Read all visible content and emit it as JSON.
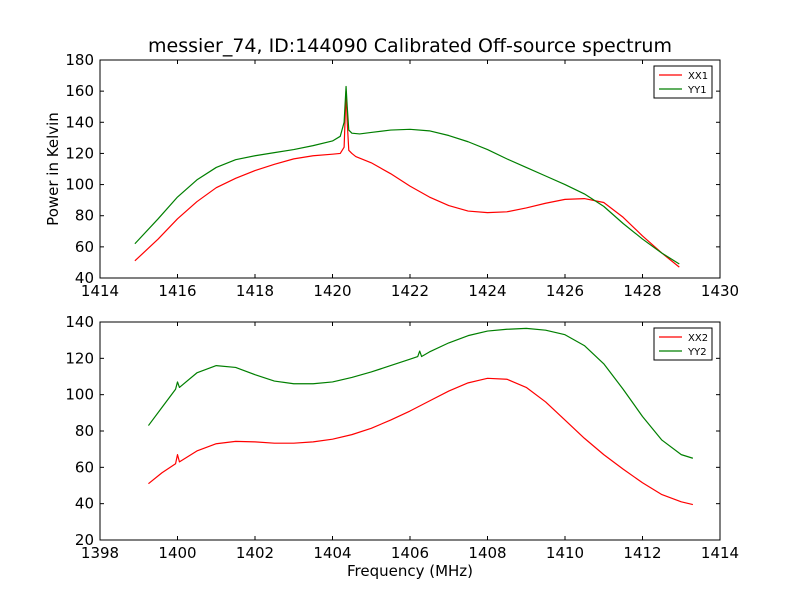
{
  "colors": {
    "red": "#ff0000",
    "green": "#007f00",
    "axes": "#000000"
  },
  "chart_data": [
    {
      "type": "line",
      "title": "messier_74, ID:144090 Calibrated Off-source spectrum",
      "xlabel": "",
      "ylabel": "Power in Kelvin",
      "xlim": [
        1414,
        1430
      ],
      "ylim": [
        40,
        180
      ],
      "xticks": [
        1414,
        1416,
        1418,
        1420,
        1422,
        1424,
        1426,
        1428,
        1430
      ],
      "yticks": [
        40,
        60,
        80,
        100,
        120,
        140,
        160,
        180
      ],
      "legend_position": "top-right",
      "series": [
        {
          "name": "XX1",
          "color": "#ff0000",
          "x": [
            1414.9,
            1415.5,
            1416.0,
            1416.5,
            1417.0,
            1417.5,
            1418.0,
            1418.5,
            1419.0,
            1419.5,
            1420.0,
            1420.2,
            1420.3,
            1420.35,
            1420.38,
            1420.42,
            1420.5,
            1420.6,
            1421.0,
            1421.5,
            1422.0,
            1422.5,
            1423.0,
            1423.5,
            1424.0,
            1424.5,
            1425.0,
            1425.5,
            1426.0,
            1426.5,
            1427.0,
            1427.5,
            1428.0,
            1428.5,
            1428.95
          ],
          "y": [
            51,
            65,
            78,
            89,
            98,
            104,
            109,
            113,
            116.5,
            118.5,
            119.5,
            120,
            124,
            160,
            140,
            122,
            120,
            118,
            114,
            107,
            99,
            92,
            86.5,
            83,
            82,
            82.5,
            85,
            88,
            90.5,
            91,
            88.5,
            79,
            67,
            56,
            47
          ]
        },
        {
          "name": "YY1",
          "color": "#007f00",
          "x": [
            1414.9,
            1415.5,
            1416.0,
            1416.5,
            1417.0,
            1417.5,
            1418.0,
            1418.5,
            1419.0,
            1419.5,
            1420.0,
            1420.2,
            1420.3,
            1420.35,
            1420.38,
            1420.42,
            1420.5,
            1420.7,
            1421.0,
            1421.5,
            1422.0,
            1422.5,
            1423.0,
            1423.5,
            1424.0,
            1424.5,
            1425.0,
            1425.5,
            1426.0,
            1426.5,
            1427.0,
            1427.5,
            1428.0,
            1428.5,
            1428.95
          ],
          "y": [
            62,
            78,
            92,
            103,
            111,
            116,
            118.5,
            120.5,
            122.5,
            125,
            128,
            131,
            140,
            163,
            150,
            135,
            133,
            132.5,
            133.5,
            135,
            135.5,
            134.5,
            131.5,
            127.5,
            122.5,
            116.5,
            111,
            105.5,
            100,
            94,
            86,
            75,
            65,
            56,
            49
          ]
        }
      ]
    },
    {
      "type": "line",
      "title": "",
      "xlabel": "Frequency (MHz)",
      "ylabel": "",
      "xlim": [
        1398,
        1414
      ],
      "ylim": [
        20,
        140
      ],
      "xticks": [
        1398,
        1400,
        1402,
        1404,
        1406,
        1408,
        1410,
        1412,
        1414
      ],
      "yticks": [
        20,
        40,
        60,
        80,
        100,
        120,
        140
      ],
      "legend_position": "top-right",
      "series": [
        {
          "name": "XX2",
          "color": "#ff0000",
          "x": [
            1399.25,
            1399.6,
            1399.95,
            1400.0,
            1400.05,
            1400.5,
            1401.0,
            1401.5,
            1402.0,
            1402.5,
            1403.0,
            1403.5,
            1404.0,
            1404.5,
            1405.0,
            1405.5,
            1406.0,
            1406.5,
            1407.0,
            1407.5,
            1408.0,
            1408.5,
            1409.0,
            1409.5,
            1410.0,
            1410.5,
            1411.0,
            1411.5,
            1412.0,
            1412.5,
            1413.0,
            1413.3
          ],
          "y": [
            51,
            57,
            62,
            67,
            63,
            69,
            73,
            74.3,
            74,
            73.3,
            73.3,
            74,
            75.5,
            78,
            81.5,
            86,
            91,
            96.5,
            102,
            106.5,
            109,
            108.5,
            104,
            96,
            86,
            76,
            67,
            59,
            51.5,
            45,
            41,
            39.5
          ]
        },
        {
          "name": "YY2",
          "color": "#007f00",
          "x": [
            1399.25,
            1399.6,
            1399.95,
            1400.0,
            1400.05,
            1400.5,
            1401.0,
            1401.5,
            1402.0,
            1402.5,
            1403.0,
            1403.5,
            1404.0,
            1404.5,
            1405.0,
            1405.5,
            1406.0,
            1406.2,
            1406.25,
            1406.3,
            1406.5,
            1407.0,
            1407.5,
            1408.0,
            1408.5,
            1409.0,
            1409.5,
            1410.0,
            1410.5,
            1411.0,
            1411.5,
            1412.0,
            1412.5,
            1413.0,
            1413.3
          ],
          "y": [
            83,
            93,
            103,
            107,
            104,
            112,
            116,
            115,
            111,
            107.5,
            106,
            106,
            107,
            109.5,
            112.5,
            116,
            119.5,
            121,
            124,
            121,
            123.5,
            128.5,
            132.5,
            135,
            136,
            136.5,
            135.5,
            133,
            127,
            117,
            103,
            88,
            75,
            67,
            65
          ]
        }
      ]
    }
  ]
}
